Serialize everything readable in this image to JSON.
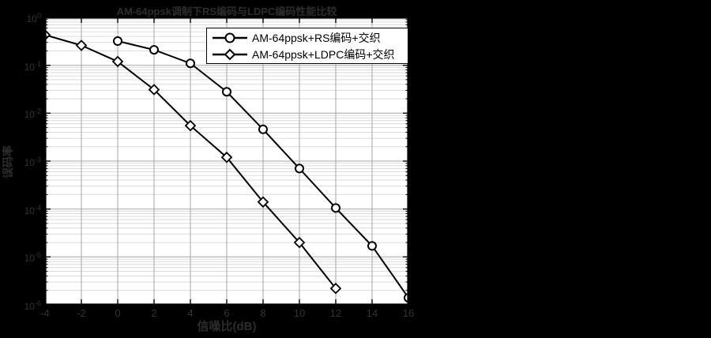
{
  "figure": {
    "background_color": "#000000",
    "plot_background_color": "#ffffff"
  },
  "colors": {
    "line": "#000000",
    "marker_fill": "#ffffff",
    "grid_major": "#a6a6a6",
    "grid_minor": "#dadada",
    "axis_box": "#000000",
    "faint_text": "#2d2d2d",
    "tick_text": "#333333",
    "legend_bg": "#ffffff",
    "legend_border": "#000000"
  },
  "chart_data": {
    "type": "line",
    "title": "AM-64ppsk调制下RS编码与LDPC编码性能比较",
    "xlabel": "信噪比(dB)",
    "ylabel": "误码率",
    "x_axis": {
      "min": -4,
      "max": 16,
      "tick_step": 2
    },
    "x_ticks": [
      -4,
      -2,
      0,
      2,
      4,
      6,
      8,
      10,
      12,
      14,
      16
    ],
    "y_scale": "log",
    "y_tick_exponents": [
      0,
      -1,
      -2,
      -3,
      -4,
      -5,
      -6
    ],
    "y_tick_base": "10",
    "ylim": [
      1e-06,
      1
    ],
    "grid": "major-and-log-minor",
    "legend_position": "inside-top-right",
    "series": [
      {
        "name": "AM-64ppsk+RS编码+交织",
        "marker": "circle",
        "color": "#000000",
        "x": [
          0,
          2,
          4,
          6,
          8,
          10,
          12,
          14,
          16
        ],
        "y": [
          0.32,
          0.21,
          0.11,
          0.028,
          0.0046,
          0.0007,
          0.000105,
          1.7e-05,
          1.4e-06
        ]
      },
      {
        "name": "AM-64ppsk+LDPC编码+交织",
        "marker": "diamond",
        "color": "#000000",
        "x": [
          -4,
          -2,
          0,
          2,
          4,
          6,
          8,
          10,
          12
        ],
        "y": [
          0.43,
          0.26,
          0.12,
          0.031,
          0.0055,
          0.0012,
          0.00014,
          2e-05,
          2.2e-06
        ]
      }
    ]
  }
}
